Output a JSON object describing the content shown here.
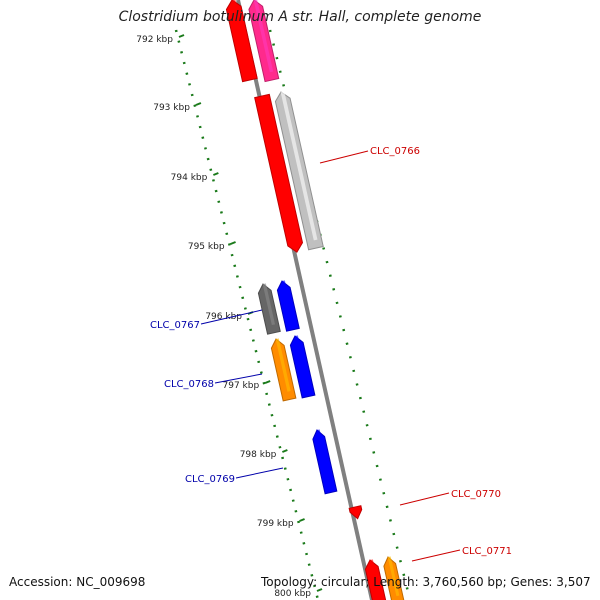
{
  "title": "Clostridium botulinum A str. Hall, complete genome",
  "accession_label": "Accession: NC_009698",
  "topology": {
    "prefix": "Topology: circular; Length: ",
    "length": "3,760,560 bp",
    "genes_prefix": "; Genes: ",
    "genes": "3,507"
  },
  "colors": {
    "backbone": "#808080",
    "ruler": "#1a7a1a",
    "gene_red": "#ff0000",
    "gene_pink": "#ff2a8c",
    "gene_gray": "#c0c0c0",
    "gene_darkgray": "#666666",
    "gene_blue": "#0000ff",
    "gene_orange": "#ff8c00",
    "label_red": "#cc0000",
    "label_blue": "#0000aa"
  },
  "ruler_ticks": [
    "792 kbp",
    "793 kbp",
    "794 kbp",
    "795 kbp",
    "796 kbp",
    "797 kbp",
    "798 kbp",
    "799 kbp",
    "800 kbp"
  ],
  "gene_labels": [
    {
      "id": "CLC_0766",
      "strand": "plus"
    },
    {
      "id": "CLC_0767",
      "strand": "minus"
    },
    {
      "id": "CLC_0768",
      "strand": "minus"
    },
    {
      "id": "CLC_0769",
      "strand": "minus"
    },
    {
      "id": "CLC_0770",
      "strand": "plus"
    },
    {
      "id": "CLC_0771",
      "strand": "plus"
    }
  ]
}
